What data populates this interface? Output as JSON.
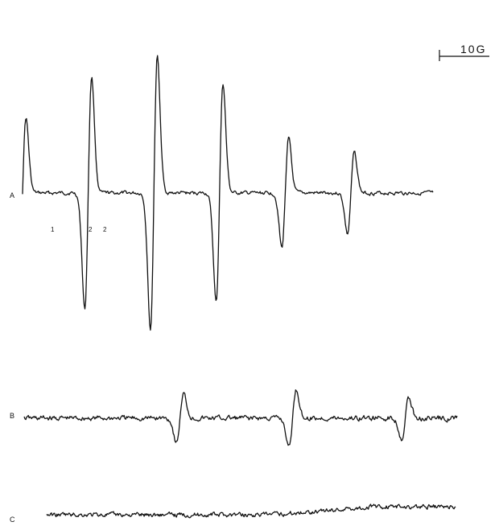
{
  "chart_data": {
    "type": "line",
    "title": "",
    "xlabel": "",
    "ylabel": "",
    "scale_bar": {
      "label": "10G",
      "gauss": 10
    },
    "series": [
      {
        "name": "A",
        "peak_markers": [
          "1",
          "2",
          "2"
        ],
        "lines": [
          {
            "pos": 0.0,
            "amp": 0.55,
            "w": 0.012
          },
          {
            "pos": 0.16,
            "amp": 0.85,
            "w": 0.012
          },
          {
            "pos": 0.32,
            "amp": 1.0,
            "w": 0.012
          },
          {
            "pos": 0.48,
            "amp": 0.8,
            "w": 0.012
          },
          {
            "pos": 0.64,
            "amp": 0.4,
            "w": 0.012
          },
          {
            "pos": 0.8,
            "amp": 0.3,
            "w": 0.012
          }
        ]
      },
      {
        "name": "B",
        "lines": [
          {
            "pos": 0.36,
            "amp": 0.55,
            "w": 0.012
          },
          {
            "pos": 0.62,
            "amp": 0.65,
            "w": 0.012
          },
          {
            "pos": 0.88,
            "amp": 0.45,
            "w": 0.012
          }
        ]
      },
      {
        "name": "C",
        "lines": []
      }
    ]
  }
}
